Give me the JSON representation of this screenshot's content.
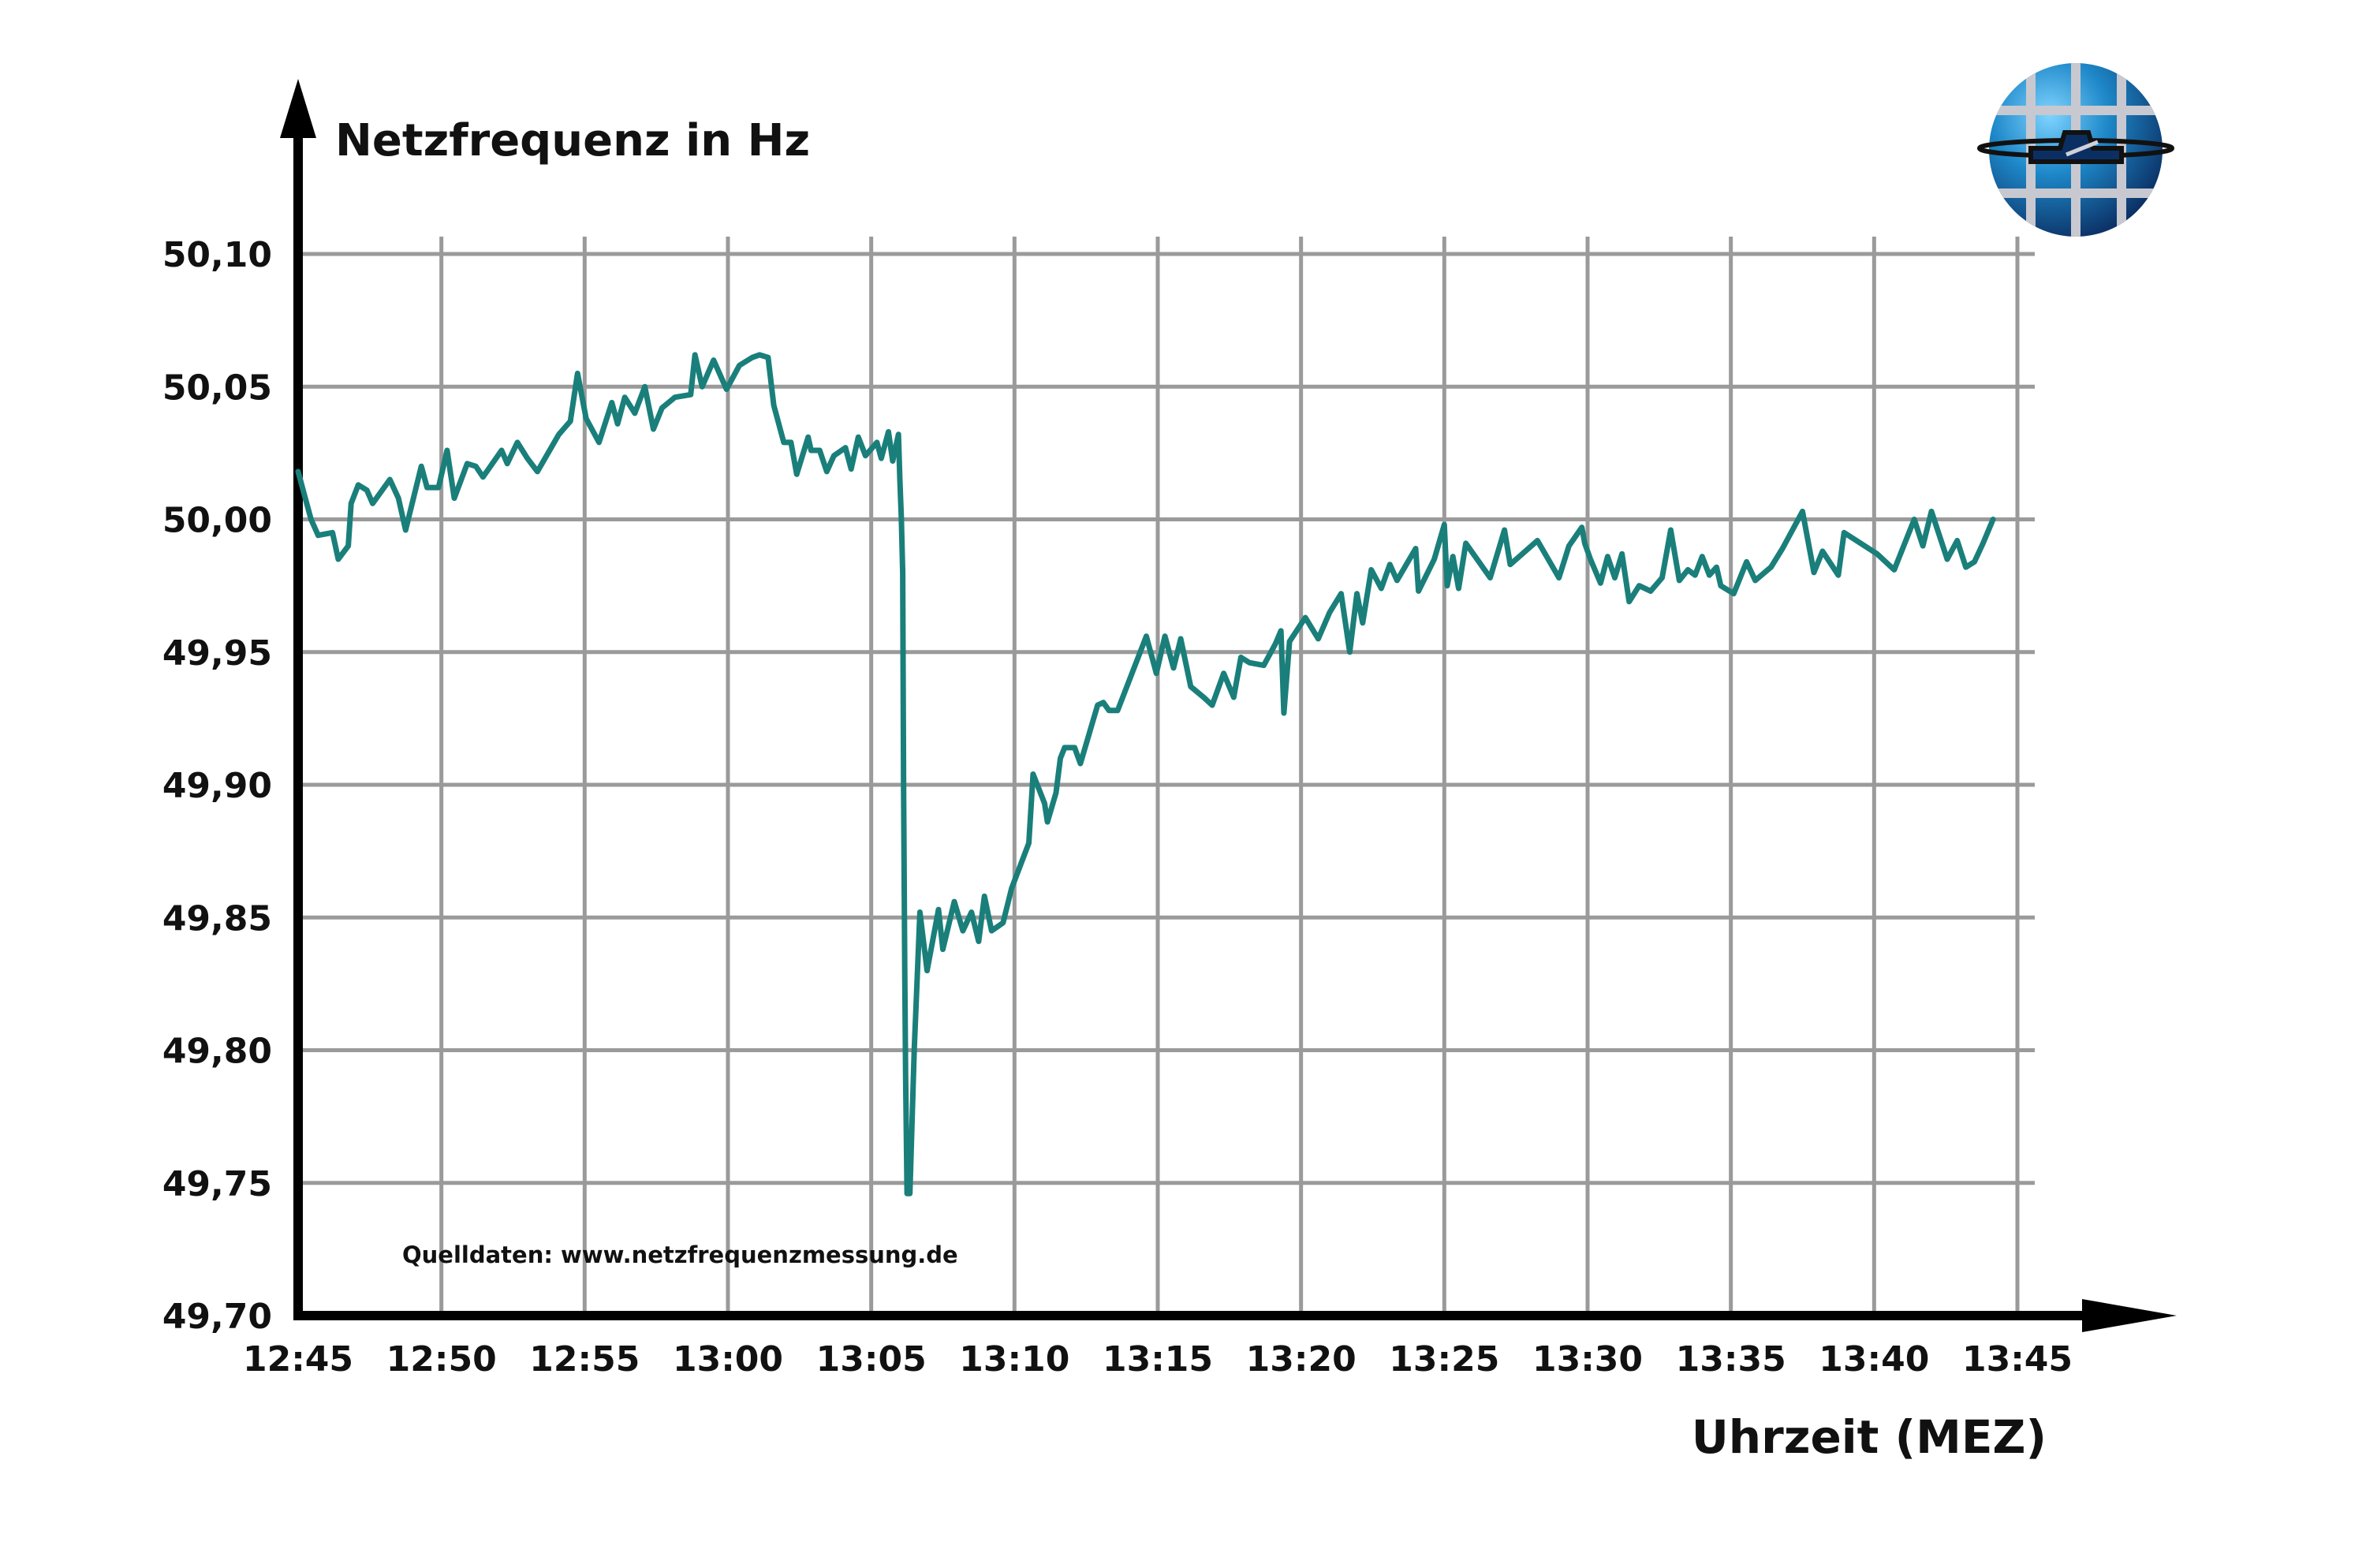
{
  "chart_data": {
    "type": "line",
    "title": "",
    "ylabel": "Netzfrequenz in Hz",
    "xlabel": "Uhrzeit (MEZ)",
    "source_note": "Quelldaten: www.netzfrequenzmessung.de",
    "ylim": [
      49.7,
      50.1
    ],
    "y_ticks": [
      "50,10",
      "50,05",
      "50,00",
      "49,95",
      "49,90",
      "49,85",
      "49,80",
      "49,75",
      "49,70"
    ],
    "y_tick_values": [
      50.1,
      50.05,
      50.0,
      49.95,
      49.9,
      49.85,
      49.8,
      49.75,
      49.7
    ],
    "x_ticks": [
      "12:45",
      "12:50",
      "12:55",
      "13:00",
      "13:05",
      "13:10",
      "13:15",
      "13:20",
      "13:25",
      "13:30",
      "13:35",
      "13:40",
      "13:45"
    ],
    "grid": true,
    "line_color": "#1a7f7a",
    "series": [
      {
        "x_unit": "minutes after 12:45",
        "points": [
          [
            0,
            50.018
          ],
          [
            0.25,
            50.008
          ],
          [
            0.45,
            50.0
          ],
          [
            0.7,
            49.994
          ],
          [
            1.2,
            49.995
          ],
          [
            1.4,
            49.985
          ],
          [
            1.75,
            49.99
          ],
          [
            1.85,
            50.006
          ],
          [
            2.1,
            50.013
          ],
          [
            2.4,
            50.011
          ],
          [
            2.6,
            50.006
          ],
          [
            3.2,
            50.015
          ],
          [
            3.5,
            50.008
          ],
          [
            3.75,
            49.996
          ],
          [
            4.3,
            50.02
          ],
          [
            4.5,
            50.012
          ],
          [
            4.9,
            50.012
          ],
          [
            5.2,
            50.026
          ],
          [
            5.45,
            50.008
          ],
          [
            5.9,
            50.021
          ],
          [
            6.2,
            50.02
          ],
          [
            6.45,
            50.016
          ],
          [
            7.1,
            50.026
          ],
          [
            7.3,
            50.021
          ],
          [
            7.65,
            50.029
          ],
          [
            8.0,
            50.023
          ],
          [
            8.35,
            50.018
          ],
          [
            9.1,
            50.032
          ],
          [
            9.5,
            50.037
          ],
          [
            9.75,
            50.055
          ],
          [
            10.05,
            50.038
          ],
          [
            10.5,
            50.029
          ],
          [
            10.95,
            50.044
          ],
          [
            11.15,
            50.036
          ],
          [
            11.4,
            50.046
          ],
          [
            11.75,
            50.04
          ],
          [
            12.1,
            50.05
          ],
          [
            12.4,
            50.034
          ],
          [
            12.7,
            50.042
          ],
          [
            13.15,
            50.046
          ],
          [
            13.7,
            50.047
          ],
          [
            13.85,
            50.062
          ],
          [
            14.1,
            50.05
          ],
          [
            14.5,
            50.06
          ],
          [
            14.95,
            50.049
          ],
          [
            15.4,
            50.058
          ],
          [
            15.85,
            50.061
          ],
          [
            16.1,
            50.062
          ],
          [
            16.4,
            50.061
          ],
          [
            16.6,
            50.043
          ],
          [
            16.95,
            50.029
          ],
          [
            17.2,
            50.029
          ],
          [
            17.4,
            50.017
          ],
          [
            17.8,
            50.031
          ],
          [
            17.9,
            50.026
          ],
          [
            18.2,
            50.026
          ],
          [
            18.45,
            50.018
          ],
          [
            18.7,
            50.024
          ],
          [
            19.1,
            50.027
          ],
          [
            19.3,
            50.019
          ],
          [
            19.55,
            50.031
          ],
          [
            19.8,
            50.024
          ],
          [
            20.2,
            50.029
          ],
          [
            20.35,
            50.023
          ],
          [
            20.6,
            50.033
          ],
          [
            20.75,
            50.022
          ],
          [
            20.95,
            50.032
          ],
          [
            21.0,
            50.015
          ],
          [
            21.05,
            50.001
          ],
          [
            21.1,
            49.98
          ],
          [
            21.13,
            49.9
          ],
          [
            21.17,
            49.83
          ],
          [
            21.2,
            49.79
          ],
          [
            21.25,
            49.746
          ],
          [
            21.35,
            49.746
          ],
          [
            21.5,
            49.8
          ],
          [
            21.7,
            49.852
          ],
          [
            21.95,
            49.83
          ],
          [
            22.35,
            49.853
          ],
          [
            22.5,
            49.838
          ],
          [
            22.9,
            49.856
          ],
          [
            23.2,
            49.845
          ],
          [
            23.5,
            49.852
          ],
          [
            23.75,
            49.841
          ],
          [
            23.95,
            49.858
          ],
          [
            24.2,
            49.845
          ],
          [
            24.6,
            49.848
          ],
          [
            24.9,
            49.861
          ],
          [
            25.5,
            49.878
          ],
          [
            25.65,
            49.904
          ],
          [
            26.05,
            49.893
          ],
          [
            26.15,
            49.886
          ],
          [
            26.45,
            49.897
          ],
          [
            26.6,
            49.91
          ],
          [
            26.75,
            49.914
          ],
          [
            27.1,
            49.914
          ],
          [
            27.3,
            49.908
          ],
          [
            27.9,
            49.93
          ],
          [
            28.1,
            49.931
          ],
          [
            28.3,
            49.928
          ],
          [
            28.6,
            49.928
          ],
          [
            29.6,
            49.956
          ],
          [
            29.95,
            49.942
          ],
          [
            30.25,
            49.956
          ],
          [
            30.55,
            49.944
          ],
          [
            30.8,
            49.955
          ],
          [
            31.15,
            49.937
          ],
          [
            31.6,
            49.933
          ],
          [
            31.9,
            49.93
          ],
          [
            32.3,
            49.942
          ],
          [
            32.65,
            49.933
          ],
          [
            32.9,
            49.948
          ],
          [
            33.2,
            49.946
          ],
          [
            33.7,
            49.945
          ],
          [
            34.1,
            49.953
          ],
          [
            34.3,
            49.958
          ],
          [
            34.4,
            49.927
          ],
          [
            34.6,
            49.954
          ],
          [
            35.15,
            49.963
          ],
          [
            35.6,
            49.955
          ],
          [
            36.0,
            49.965
          ],
          [
            36.4,
            49.972
          ],
          [
            36.7,
            49.95
          ],
          [
            36.95,
            49.972
          ],
          [
            37.15,
            49.961
          ],
          [
            37.45,
            49.981
          ],
          [
            37.8,
            49.974
          ],
          [
            38.1,
            49.983
          ],
          [
            38.35,
            49.977
          ],
          [
            39.0,
            49.989
          ],
          [
            39.1,
            49.973
          ],
          [
            39.65,
            49.985
          ],
          [
            40.0,
            49.998
          ],
          [
            40.1,
            49.975
          ],
          [
            40.3,
            49.986
          ],
          [
            40.5,
            49.974
          ],
          [
            40.75,
            49.991
          ],
          [
            41.6,
            49.978
          ],
          [
            42.1,
            49.996
          ],
          [
            42.3,
            49.983
          ],
          [
            43.25,
            49.992
          ],
          [
            44.0,
            49.978
          ],
          [
            44.35,
            49.99
          ],
          [
            44.8,
            49.997
          ],
          [
            44.9,
            49.991
          ],
          [
            45.1,
            49.985
          ],
          [
            45.45,
            49.976
          ],
          [
            45.7,
            49.986
          ],
          [
            45.95,
            49.978
          ],
          [
            46.2,
            49.987
          ],
          [
            46.45,
            49.969
          ],
          [
            46.8,
            49.975
          ],
          [
            47.2,
            49.973
          ],
          [
            47.6,
            49.978
          ],
          [
            47.9,
            49.996
          ],
          [
            48.2,
            49.977
          ],
          [
            48.5,
            49.981
          ],
          [
            48.75,
            49.979
          ],
          [
            49.0,
            49.986
          ],
          [
            49.25,
            49.979
          ],
          [
            49.5,
            49.982
          ],
          [
            49.65,
            49.975
          ],
          [
            50.1,
            49.972
          ],
          [
            50.55,
            49.984
          ],
          [
            50.85,
            49.977
          ],
          [
            51.4,
            49.982
          ],
          [
            51.8,
            49.989
          ],
          [
            52.5,
            50.003
          ],
          [
            52.9,
            49.98
          ],
          [
            53.2,
            49.988
          ],
          [
            53.75,
            49.979
          ],
          [
            53.95,
            49.995
          ],
          [
            55.1,
            49.987
          ],
          [
            55.7,
            49.981
          ],
          [
            56.4,
            50.0
          ],
          [
            56.7,
            49.99
          ],
          [
            57.0,
            50.003
          ],
          [
            57.55,
            49.985
          ],
          [
            57.9,
            49.992
          ],
          [
            58.2,
            49.982
          ],
          [
            58.5,
            49.984
          ],
          [
            58.8,
            49.991
          ],
          [
            59.15,
            50.0
          ]
        ]
      }
    ]
  },
  "logo": {
    "name": "globe-logo",
    "colors": [
      "#1e88c9",
      "#0b3d7a",
      "#c8c8d0"
    ]
  }
}
